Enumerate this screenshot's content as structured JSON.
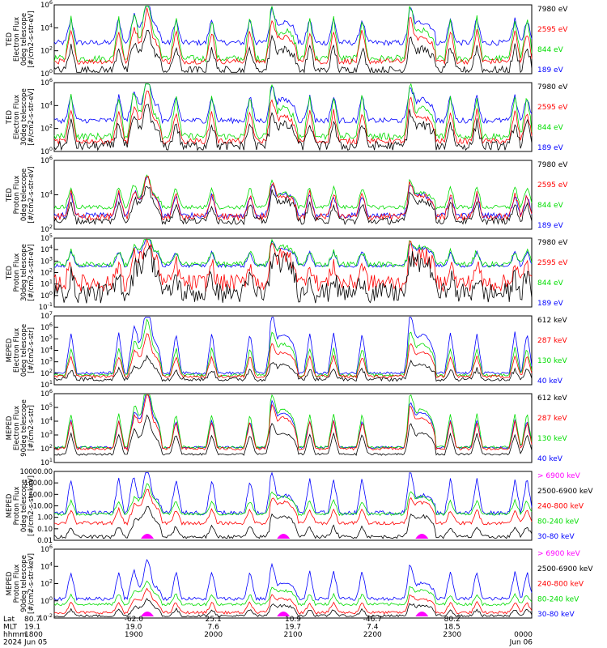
{
  "chart_data": [
    {
      "type": "line",
      "ylabel_lines": [
        "TED",
        "Electron Flux",
        "0deg telescope",
        "[#/cm2-s-str-eV]"
      ],
      "ylog": true,
      "y_ticks": [
        "10^0",
        "10^2",
        "10^4",
        "10^6"
      ],
      "legend": [
        {
          "name": "7980 eV",
          "color": "#000000"
        },
        {
          "name": "2595 eV",
          "color": "#ff0000"
        },
        {
          "name": "844 eV",
          "color": "#00dd00"
        },
        {
          "name": "189 eV",
          "color": "#0000ff"
        }
      ]
    },
    {
      "type": "line",
      "ylabel_lines": [
        "TED",
        "Electron Flux",
        "30deg telescope",
        "[#/cm2-s-str-eV]"
      ],
      "ylog": true,
      "y_ticks": [
        "10^0",
        "10^2",
        "10^4",
        "10^6"
      ],
      "legend": [
        {
          "name": "7980 eV",
          "color": "#000000"
        },
        {
          "name": "2595 eV",
          "color": "#ff0000"
        },
        {
          "name": "844 eV",
          "color": "#00dd00"
        },
        {
          "name": "189 eV",
          "color": "#0000ff"
        }
      ]
    },
    {
      "type": "line",
      "ylabel_lines": [
        "TED",
        "Proton Flux",
        "0deg telescope",
        "[#/cm2-s-str-eV]"
      ],
      "ylog": true,
      "y_ticks": [
        "10^2",
        "10^4",
        "10^6"
      ],
      "legend": [
        {
          "name": "7980 eV",
          "color": "#000000"
        },
        {
          "name": "2595 eV",
          "color": "#ff0000"
        },
        {
          "name": "844 eV",
          "color": "#00dd00"
        },
        {
          "name": "189 eV",
          "color": "#0000ff"
        }
      ]
    },
    {
      "type": "line",
      "ylabel_lines": [
        "TED",
        "Proton Flux",
        "30deg telescope",
        "[#/cm2-s-str-eV]"
      ],
      "ylog": true,
      "y_ticks": [
        "10^-1",
        "10^0",
        "10^1",
        "10^2",
        "10^3",
        "10^4",
        "10^5"
      ],
      "legend": [
        {
          "name": "7980 eV",
          "color": "#000000"
        },
        {
          "name": "2595 eV",
          "color": "#ff0000"
        },
        {
          "name": "844 eV",
          "color": "#00dd00"
        },
        {
          "name": "189 eV",
          "color": "#0000ff"
        }
      ]
    },
    {
      "type": "line",
      "ylabel_lines": [
        "MEPED",
        "Electron Flux",
        "0deg telescope",
        "[#/cm2-s-str]"
      ],
      "ylog": true,
      "y_ticks": [
        "10^1",
        "10^2",
        "10^3",
        "10^4",
        "10^5",
        "10^6",
        "10^7"
      ],
      "legend": [
        {
          "name": "612 keV",
          "color": "#000000"
        },
        {
          "name": "287 keV",
          "color": "#ff0000"
        },
        {
          "name": "130 keV",
          "color": "#00dd00"
        },
        {
          "name": "40 keV",
          "color": "#0000ff"
        }
      ]
    },
    {
      "type": "line",
      "ylabel_lines": [
        "MEPED",
        "Electron Flux",
        "90deg telescope",
        "[#/cm2-s-str]"
      ],
      "ylog": true,
      "y_ticks": [
        "10^1",
        "10^2",
        "10^3",
        "10^4",
        "10^5",
        "10^6"
      ],
      "legend": [
        {
          "name": "612 keV",
          "color": "#000000"
        },
        {
          "name": "287 keV",
          "color": "#ff0000"
        },
        {
          "name": "130 keV",
          "color": "#00dd00"
        },
        {
          "name": "40 keV",
          "color": "#0000ff"
        }
      ]
    },
    {
      "type": "line",
      "ylabel_lines": [
        "MEPED",
        "Proton Flux",
        "0deg telescope",
        "[#/cm2-s-str-keV]"
      ],
      "ylog": true,
      "y_ticks": [
        "0.01",
        "0.10",
        "1.00",
        "10.00",
        "100.00",
        "1000.00",
        "10000.00"
      ],
      "legend": [
        {
          "name": "> 6900 keV",
          "color": "#ff00ff"
        },
        {
          "name": "2500-6900 keV",
          "color": "#000000"
        },
        {
          "name": "240-800 keV",
          "color": "#ff0000"
        },
        {
          "name": "80-240 keV",
          "color": "#00dd00"
        },
        {
          "name": "30-80 keV",
          "color": "#0000ff"
        }
      ]
    },
    {
      "type": "line",
      "ylabel_lines": [
        "MEPED",
        "Proton Flux",
        "90deg telescope",
        "[#/cm2-s-str-keV]"
      ],
      "ylog": true,
      "y_ticks": [
        "10^-2",
        "10^0",
        "10^2",
        "10^4",
        "10^6"
      ],
      "legend": [
        {
          "name": "> 6900 keV",
          "color": "#ff00ff"
        },
        {
          "name": "2500-6900 keV",
          "color": "#000000"
        },
        {
          "name": "240-800 keV",
          "color": "#ff0000"
        },
        {
          "name": "80-240 keV",
          "color": "#00dd00"
        },
        {
          "name": "30-80 keV",
          "color": "#0000ff"
        }
      ]
    }
  ],
  "x_axis": {
    "row_labels": [
      "Lat",
      "MLT",
      "hhmm",
      "2024"
    ],
    "columns": [
      {
        "lat": "80.7",
        "mlt": "19.1",
        "hhmm": "1800",
        "date": "Jun 05"
      },
      {
        "lat": "-62.0",
        "mlt": "19.0",
        "hhmm": "1900",
        "date": ""
      },
      {
        "lat": "25.1",
        "mlt": "7.6",
        "hhmm": "2000",
        "date": ""
      },
      {
        "lat": "10.9",
        "mlt": "19.7",
        "hhmm": "2100",
        "date": ""
      },
      {
        "lat": "-46.7",
        "mlt": "7.4",
        "hhmm": "2200",
        "date": ""
      },
      {
        "lat": "80.2",
        "mlt": "18.5",
        "hhmm": "2300",
        "date": ""
      },
      {
        "lat": "",
        "mlt": "",
        "hhmm": "0000",
        "date": "Jun 06"
      }
    ]
  },
  "colors": {
    "black": "#000000",
    "red": "#ff0000",
    "green": "#00dd00",
    "blue": "#0000ff",
    "magenta": "#ff00ff"
  }
}
